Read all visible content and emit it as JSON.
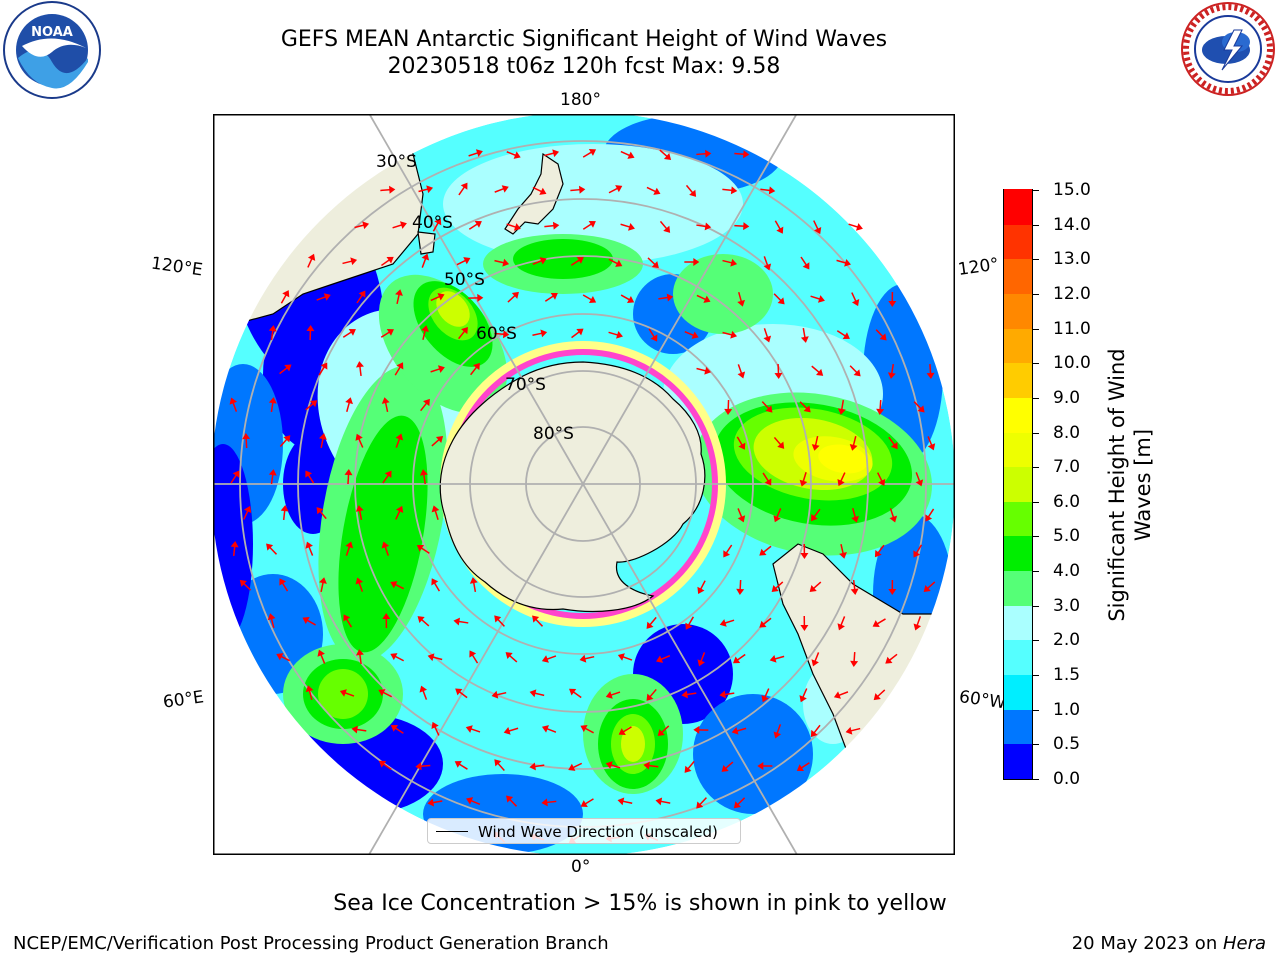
{
  "header": {
    "title_line1": "GEFS MEAN Antarctic Significant Height of Wind Waves",
    "title_line2": "20230518 t06z 120h fcst   Max: 9.58"
  },
  "logos": {
    "left": {
      "icon": "noaa-logo-icon",
      "text": "NOAA"
    },
    "right": {
      "icon": "nws-logo-icon",
      "text": "NATIONAL WEATHER SERVICE"
    }
  },
  "map": {
    "projection": "south-polar-stereographic",
    "longitude_labels": {
      "top": "180°",
      "bottom": "0°",
      "left_upper": "120°E",
      "left_lower": "60°E",
      "right_upper": "120°",
      "right_lower": "60°W"
    },
    "latitude_labels": [
      "30°S",
      "40°S",
      "50°S",
      "60°S",
      "70°S",
      "80°S"
    ],
    "legend": {
      "label": "Wind Wave Direction (unscaled)"
    },
    "colors": {
      "land": "#eeeedd",
      "coast": "#000000",
      "grid": "#b0b0b0",
      "arrow": "#ff0000",
      "ice_pink": "#ff44cc",
      "ice_yellow": "#ffff88"
    }
  },
  "colorbar": {
    "title": "Significant Height of Wind Waves [m]",
    "ticks": [
      "0.0",
      "0.5",
      "1.0",
      "1.5",
      "2.0",
      "3.0",
      "4.0",
      "5.0",
      "6.0",
      "7.0",
      "8.0",
      "9.0",
      "10.0",
      "11.0",
      "12.0",
      "13.0",
      "14.0",
      "15.0"
    ],
    "colors": [
      "#0000ff",
      "#0077ff",
      "#00eeff",
      "#55ffff",
      "#aaffff",
      "#55ff77",
      "#00ee00",
      "#66ff00",
      "#ccff00",
      "#eeff00",
      "#ffff00",
      "#ffcc00",
      "#ffaa00",
      "#ff8800",
      "#ff6600",
      "#ff3300",
      "#ff0000"
    ]
  },
  "footer": {
    "note": "Sea Ice Concentration > 15% is shown in pink to yellow",
    "credit": "NCEP/EMC/Verification Post Processing Product Generation Branch",
    "date_prefix": "20 May 2023 on ",
    "date_host": "Hera"
  }
}
